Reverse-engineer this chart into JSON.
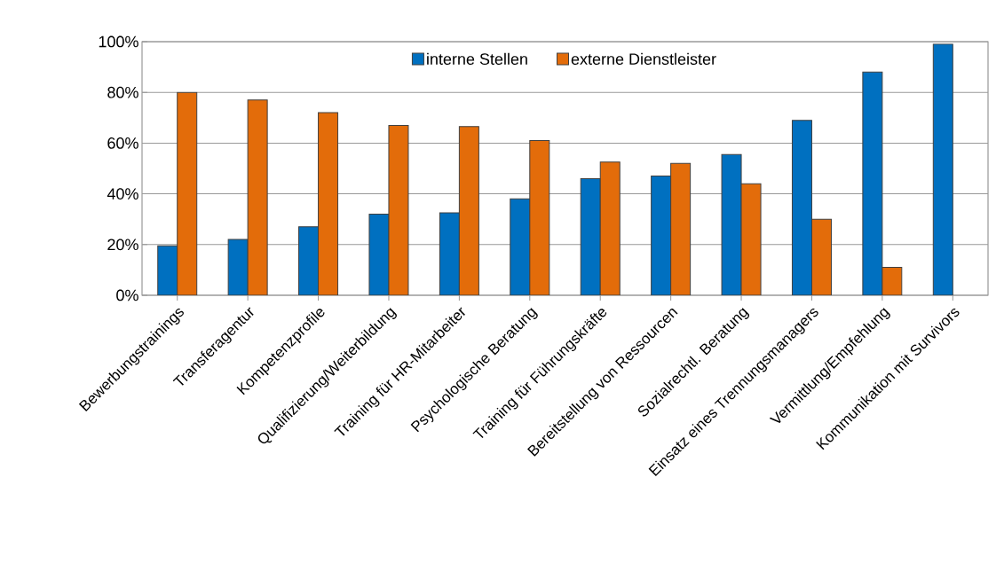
{
  "chart_data": {
    "type": "bar",
    "categories": [
      "Bewerbungstrainings",
      "Transferagentur",
      "Kompetenzprofile",
      "Qualifizierung/Weiterbildung",
      "Training für HR-Mitarbeiter",
      "Psychologische Beratung",
      "Training für Führungskräfte",
      "Bereitstellung von Ressourcen",
      "Sozialrechtl. Beratung",
      "Einsatz eines Trennungsmanagers",
      "Vermittlung/Empfehlung",
      "Kommunikation mit Survivors"
    ],
    "series": [
      {
        "name": "interne Stellen",
        "color": "#0070c0",
        "values": [
          19.5,
          22,
          27,
          32,
          32.5,
          38,
          46,
          47,
          55.5,
          69,
          88,
          99
        ]
      },
      {
        "name": "externe Dienstleister",
        "color": "#e36c0a",
        "values": [
          80,
          77,
          72,
          67,
          66.5,
          61,
          52.5,
          52,
          44,
          30,
          11,
          null
        ]
      }
    ],
    "ylim": [
      0,
      100
    ],
    "yticks": [
      {
        "value": 0,
        "label": "0%"
      },
      {
        "value": 20,
        "label": "20%"
      },
      {
        "value": 40,
        "label": "40%"
      },
      {
        "value": 60,
        "label": "60%"
      },
      {
        "value": 80,
        "label": "80%"
      },
      {
        "value": 100,
        "label": "100%"
      }
    ],
    "grid": "y",
    "legend": "top"
  }
}
